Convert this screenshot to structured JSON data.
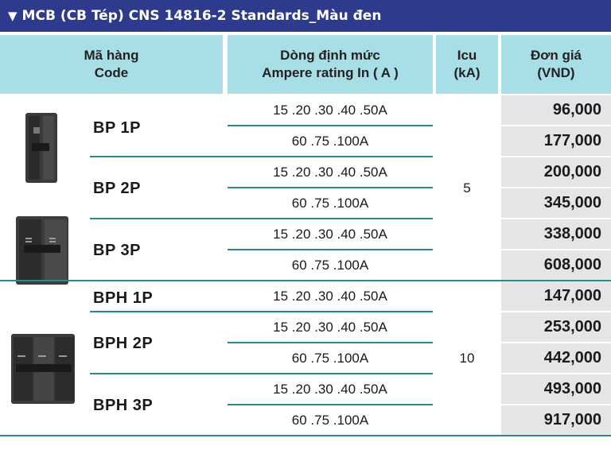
{
  "title": "MCB (CB Tép)  CNS 14816-2  Standards_Màu đen",
  "title_icon": "triangle-down-icon",
  "header": {
    "code_line1": "Mã hàng",
    "code_line2": "Code",
    "rating_line1": "Dòng định mức",
    "rating_line2": "Ampere rating In ( A )",
    "icu_line1": "Icu",
    "icu_line2": "(kA)",
    "price_line1": "Đơn giá",
    "price_line2": "(VND)"
  },
  "colors": {
    "title_bg": "#2e3a8c",
    "header_bg": "#a8dee6",
    "divider": "#2a8a8e",
    "price_bg": "#e5e5e5"
  },
  "codes": [
    "BP  1P",
    "BP  2P",
    "BP  3P",
    "BPH  1P",
    "BPH  2P",
    "BPH  3P"
  ],
  "icu": [
    "5",
    "10"
  ],
  "rows": [
    {
      "rating": "15 .20 .30 .40 .50A",
      "price": "96,000"
    },
    {
      "rating": "60 .75 .100A",
      "price": "177,000"
    },
    {
      "rating": "15 .20 .30 .40 .50A",
      "price": "200,000"
    },
    {
      "rating": "60 .75 .100A",
      "price": "345,000"
    },
    {
      "rating": "15 .20 .30 .40 .50A",
      "price": "338,000"
    },
    {
      "rating": "60 .75 .100A",
      "price": "608,000"
    },
    {
      "rating": "15 .20 .30 .40 .50A",
      "price": "147,000"
    },
    {
      "rating": "15 .20 .30 .40 .50A",
      "price": "253,000"
    },
    {
      "rating": "60 .75 .100A",
      "price": "442,000"
    },
    {
      "rating": "15 .20 .30 .40 .50A",
      "price": "493,000"
    },
    {
      "rating": "60 .75 .100A",
      "price": "917,000"
    }
  ]
}
